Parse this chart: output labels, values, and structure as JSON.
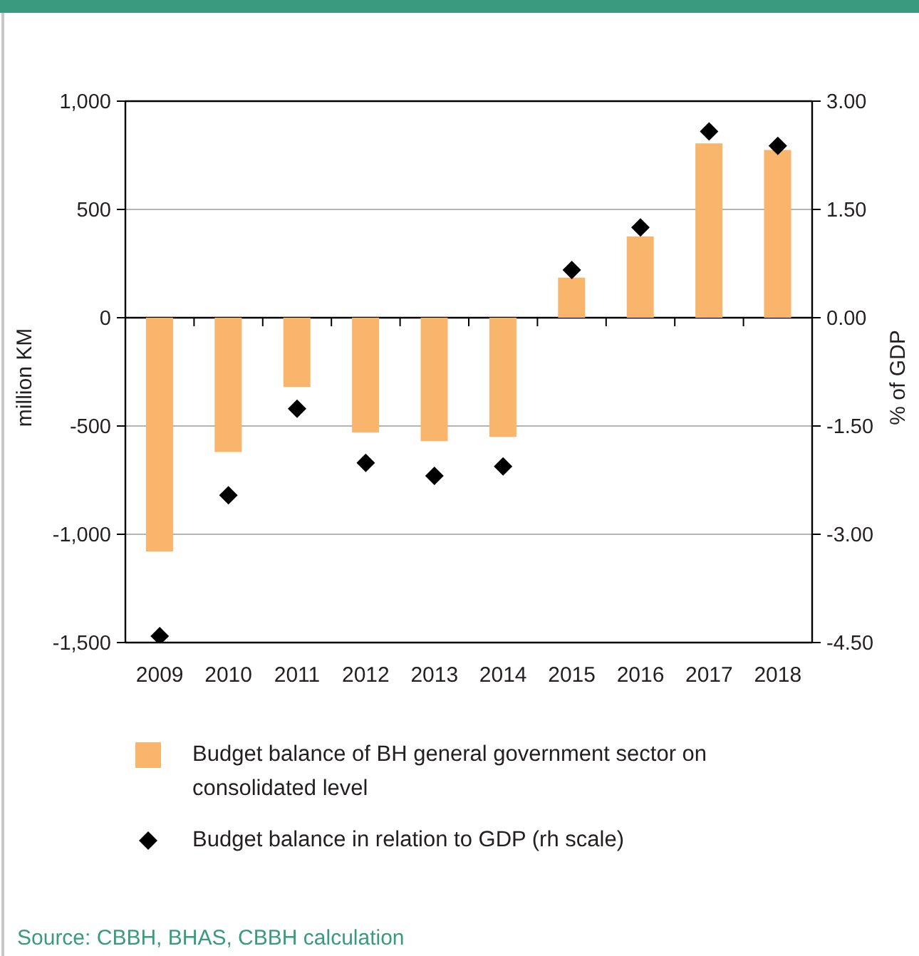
{
  "chart_data": {
    "type": "bar",
    "categories": [
      "2009",
      "2010",
      "2011",
      "2012",
      "2013",
      "2014",
      "2015",
      "2016",
      "2017",
      "2018"
    ],
    "series": [
      {
        "name": "Budget balance of BH general government sector on consolidated level",
        "color": "#f9b56b",
        "values": [
          -1080,
          -620,
          -320,
          -530,
          -570,
          -550,
          185,
          375,
          805,
          775
        ]
      },
      {
        "name": "Budget balance in relation to GDP (rh scale)",
        "type": "scatter",
        "axis": "y2",
        "marker": "diamond",
        "color": "#000000",
        "values": [
          -4.41,
          -2.46,
          -1.26,
          -2.01,
          -2.19,
          -2.06,
          0.66,
          1.25,
          2.58,
          2.38
        ]
      }
    ],
    "ylabel": "million KM",
    "y2label": "% of GDP",
    "ylim": [
      -1500,
      1000
    ],
    "yticks": [
      {
        "value": 1000,
        "label": "1,000"
      },
      500,
      0,
      -500,
      {
        "value": -1000,
        "label": "-1,000"
      },
      {
        "value": -1500,
        "label": "-1,500"
      }
    ],
    "y2lim": [
      -4.5,
      3
    ],
    "y2ticks": [
      {
        "value": 3,
        "label": "3.00"
      },
      {
        "value": 1.5,
        "label": "1.50"
      },
      {
        "value": 0,
        "label": "0.00"
      },
      {
        "value": -1.5,
        "label": "-1.50"
      },
      {
        "value": -3,
        "label": "-3.00"
      },
      {
        "value": -4.5,
        "label": "-4.50"
      }
    ],
    "grid": "y",
    "legend": "bottom",
    "annotations": [
      "Source: CBBH, BHAS, CBBH calculation"
    ]
  }
}
